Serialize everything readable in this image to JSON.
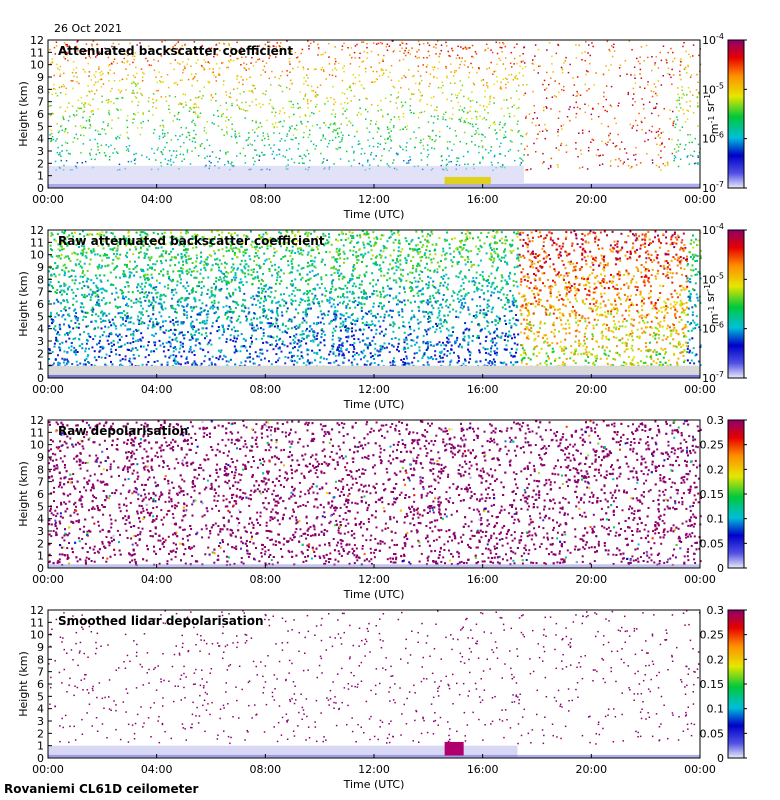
{
  "date_label": "26 Oct 2021",
  "footer_label": "Rovaniemi CL61D ceilometer",
  "chart_data": [
    {
      "type": "heatmap",
      "title": "Attenuated backscatter coefficient",
      "xlabel": "Time (UTC)",
      "ylabel": "Height (km)",
      "x_ticks": [
        "00:00",
        "04:00",
        "08:00",
        "12:00",
        "16:00",
        "20:00",
        "00:00"
      ],
      "y_ticks": [
        "0",
        "1",
        "2",
        "3",
        "4",
        "5",
        "6",
        "7",
        "8",
        "9",
        "10",
        "11",
        "12"
      ],
      "ylim": [
        0,
        12
      ],
      "x_range_hours": [
        0,
        24
      ],
      "colorbar": {
        "scale": "log",
        "range": [
          1e-07,
          0.0001
        ],
        "tick_labels": [
          "10-7",
          "10-6",
          "10-5",
          "10-4"
        ],
        "unit_label": "m-1 sr-1"
      }
    },
    {
      "type": "heatmap",
      "title": "Raw attenuated backscatter coefficient",
      "xlabel": "Time (UTC)",
      "ylabel": "Height (km)",
      "x_ticks": [
        "00:00",
        "04:00",
        "08:00",
        "12:00",
        "16:00",
        "20:00",
        "00:00"
      ],
      "y_ticks": [
        "0",
        "1",
        "2",
        "3",
        "4",
        "5",
        "6",
        "7",
        "8",
        "9",
        "10",
        "11",
        "12"
      ],
      "ylim": [
        0,
        12
      ],
      "x_range_hours": [
        0,
        24
      ],
      "colorbar": {
        "scale": "log",
        "range": [
          1e-07,
          0.0001
        ],
        "tick_labels": [
          "10-7",
          "10-6",
          "10-5",
          "10-4"
        ],
        "unit_label": "m-1 sr-1"
      }
    },
    {
      "type": "heatmap",
      "title": "Raw depolarisation",
      "xlabel": "Time (UTC)",
      "ylabel": "Height (km)",
      "x_ticks": [
        "00:00",
        "04:00",
        "08:00",
        "12:00",
        "16:00",
        "20:00",
        "00:00"
      ],
      "y_ticks": [
        "0",
        "1",
        "2",
        "3",
        "4",
        "5",
        "6",
        "7",
        "8",
        "9",
        "10",
        "11",
        "12"
      ],
      "ylim": [
        0,
        12
      ],
      "x_range_hours": [
        0,
        24
      ],
      "colorbar": {
        "scale": "linear",
        "range": [
          0,
          0.3
        ],
        "tick_labels": [
          "0",
          "0.05",
          "0.1",
          "0.15",
          "0.2",
          "0.25",
          "0.3"
        ]
      }
    },
    {
      "type": "heatmap",
      "title": "Smoothed lidar depolarisation",
      "xlabel": "Time (UTC)",
      "ylabel": "Height (km)",
      "x_ticks": [
        "00:00",
        "04:00",
        "08:00",
        "12:00",
        "16:00",
        "20:00",
        "00:00"
      ],
      "y_ticks": [
        "0",
        "1",
        "2",
        "3",
        "4",
        "5",
        "6",
        "7",
        "8",
        "9",
        "10",
        "11",
        "12"
      ],
      "ylim": [
        0,
        12
      ],
      "x_range_hours": [
        0,
        24
      ],
      "colorbar": {
        "scale": "linear",
        "range": [
          0,
          0.3
        ],
        "tick_labels": [
          "0",
          "0.05",
          "0.1",
          "0.15",
          "0.2",
          "0.25",
          "0.3"
        ]
      }
    }
  ]
}
